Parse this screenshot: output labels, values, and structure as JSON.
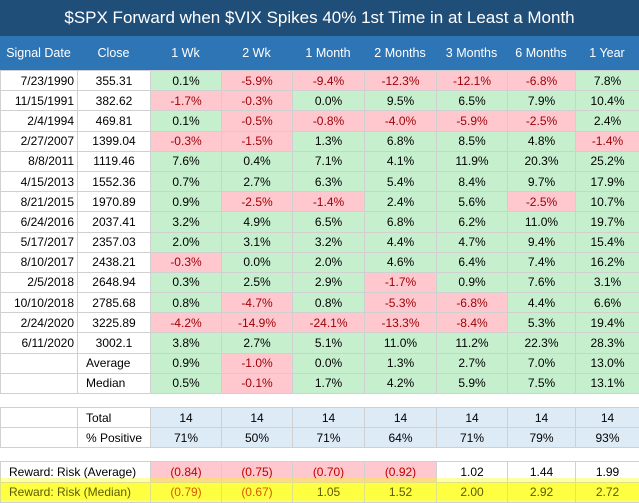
{
  "title": "$SPX Forward when $VIX Spikes 40% 1st Time in at Least a Month",
  "headers": [
    "Signal Date",
    "Close",
    "1 Wk",
    "2 Wk",
    "1 Month",
    "2 Months",
    "3 Months",
    "6 Months",
    "1 Year"
  ],
  "rows": [
    [
      "7/23/1990",
      "355.31",
      "0.1%",
      "-5.9%",
      "-9.4%",
      "-12.3%",
      "-12.1%",
      "-6.8%",
      "7.8%"
    ],
    [
      "11/15/1991",
      "382.62",
      "-1.7%",
      "-0.3%",
      "0.0%",
      "9.5%",
      "6.5%",
      "7.9%",
      "10.4%"
    ],
    [
      "2/4/1994",
      "469.81",
      "0.1%",
      "-0.5%",
      "-0.8%",
      "-4.0%",
      "-5.9%",
      "-2.5%",
      "2.4%"
    ],
    [
      "2/27/2007",
      "1399.04",
      "-0.3%",
      "-1.5%",
      "1.3%",
      "6.8%",
      "8.5%",
      "4.8%",
      "-1.4%"
    ],
    [
      "8/8/2011",
      "1119.46",
      "7.6%",
      "0.4%",
      "7.1%",
      "4.1%",
      "11.9%",
      "20.3%",
      "25.2%"
    ],
    [
      "4/15/2013",
      "1552.36",
      "0.7%",
      "2.7%",
      "6.3%",
      "5.4%",
      "8.4%",
      "9.7%",
      "17.9%"
    ],
    [
      "8/21/2015",
      "1970.89",
      "0.9%",
      "-2.5%",
      "-1.4%",
      "2.4%",
      "5.6%",
      "-2.5%",
      "10.7%"
    ],
    [
      "6/24/2016",
      "2037.41",
      "3.2%",
      "4.9%",
      "6.5%",
      "6.8%",
      "6.2%",
      "11.0%",
      "19.7%"
    ],
    [
      "5/17/2017",
      "2357.03",
      "2.0%",
      "3.1%",
      "3.2%",
      "4.4%",
      "4.7%",
      "9.4%",
      "15.4%"
    ],
    [
      "8/10/2017",
      "2438.21",
      "-0.3%",
      "0.0%",
      "2.0%",
      "4.6%",
      "6.4%",
      "7.4%",
      "16.2%"
    ],
    [
      "2/5/2018",
      "2648.94",
      "0.3%",
      "2.5%",
      "2.9%",
      "-1.7%",
      "0.9%",
      "7.6%",
      "3.1%"
    ],
    [
      "10/10/2018",
      "2785.68",
      "0.8%",
      "-4.7%",
      "0.8%",
      "-5.3%",
      "-6.8%",
      "4.4%",
      "6.6%"
    ],
    [
      "2/24/2020",
      "3225.89",
      "-4.2%",
      "-14.9%",
      "-24.1%",
      "-13.3%",
      "-8.4%",
      "5.3%",
      "19.4%"
    ],
    [
      "6/11/2020",
      "3002.1",
      "3.8%",
      "2.7%",
      "5.1%",
      "11.0%",
      "11.2%",
      "22.3%",
      "28.3%"
    ]
  ],
  "stats": [
    {
      "label": "Average",
      "values": [
        "0.9%",
        "-1.0%",
        "0.0%",
        "1.3%",
        "2.7%",
        "7.0%",
        "13.0%"
      ]
    },
    {
      "label": "Median",
      "values": [
        "0.5%",
        "-0.1%",
        "1.7%",
        "4.2%",
        "5.9%",
        "7.5%",
        "13.1%"
      ]
    }
  ],
  "counts": [
    {
      "label": "Total",
      "values": [
        "14",
        "14",
        "14",
        "14",
        "14",
        "14",
        "14"
      ]
    },
    {
      "label": "% Positive",
      "values": [
        "71%",
        "50%",
        "71%",
        "64%",
        "71%",
        "79%",
        "93%"
      ]
    }
  ],
  "reward": [
    {
      "label": "Reward: Risk (Average)",
      "values": [
        "(0.84)",
        "(0.75)",
        "(0.70)",
        "(0.92)",
        "1.02",
        "1.44",
        "1.99"
      ]
    },
    {
      "label": "Reward: Risk (Median)",
      "values": [
        "(0.79)",
        "(0.67)",
        "1.05",
        "1.52",
        "2.00",
        "2.92",
        "2.72"
      ]
    }
  ],
  "colors": {
    "positive_fill": "#c6efce",
    "negative_fill": "#ffc7ce",
    "negative_text": "#9c0006",
    "header_bg": "#2e75b6",
    "title_bg": "#1f4e79",
    "highlight": "#ffff00"
  }
}
